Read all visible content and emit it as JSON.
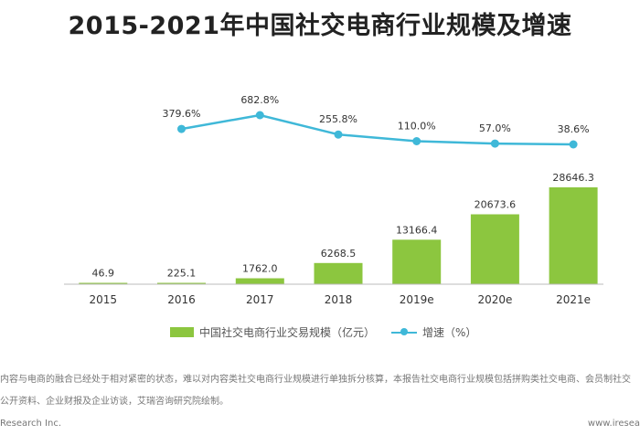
{
  "title": "2015-2021年中国社交电商行业规模及增速",
  "colors": {
    "bar": "#8cc63f",
    "line": "#3fb8d8",
    "axis": "#bbbbbb",
    "text": "#333333"
  },
  "legend": {
    "bar_label": "中国社交电商行业交易规模（亿元）",
    "line_label": "增速（%）"
  },
  "notes": [
    "内容与电商的融合已经处于相对紧密的状态，难以对内容类社交电商行业规模进行单独拆分核算，本报告社交电商行业规模包括拼购类社交电商、会员制社交",
    "公开资料、企业财报及企业访谈，艾瑞咨询研究院绘制。",
    "Research Inc.",
    "www.iresea"
  ],
  "chart_data": {
    "type": "bar",
    "categories": [
      "2015",
      "2016",
      "2017",
      "2018",
      "2019e",
      "2020e",
      "2021e"
    ],
    "series": [
      {
        "name": "中国社交电商行业交易规模（亿元）",
        "type": "bar",
        "values": [
          46.9,
          225.1,
          1762.0,
          6268.5,
          13166.4,
          20673.6,
          28646.3
        ],
        "labels": [
          "46.9",
          "225.1",
          "1762.0",
          "6268.5",
          "13166.4",
          "20673.6",
          "28646.3"
        ]
      },
      {
        "name": "增速（%）",
        "type": "line",
        "values": [
          null,
          379.6,
          682.8,
          255.8,
          110.0,
          57.0,
          38.6
        ],
        "labels": [
          "",
          "379.6%",
          "682.8%",
          "255.8%",
          "110.0%",
          "57.0%",
          "38.6%"
        ]
      }
    ],
    "bar_ylim": [
      0,
      30000
    ],
    "line_ylim": [
      0,
      700
    ],
    "grid": false,
    "legend_position": "bottom"
  }
}
